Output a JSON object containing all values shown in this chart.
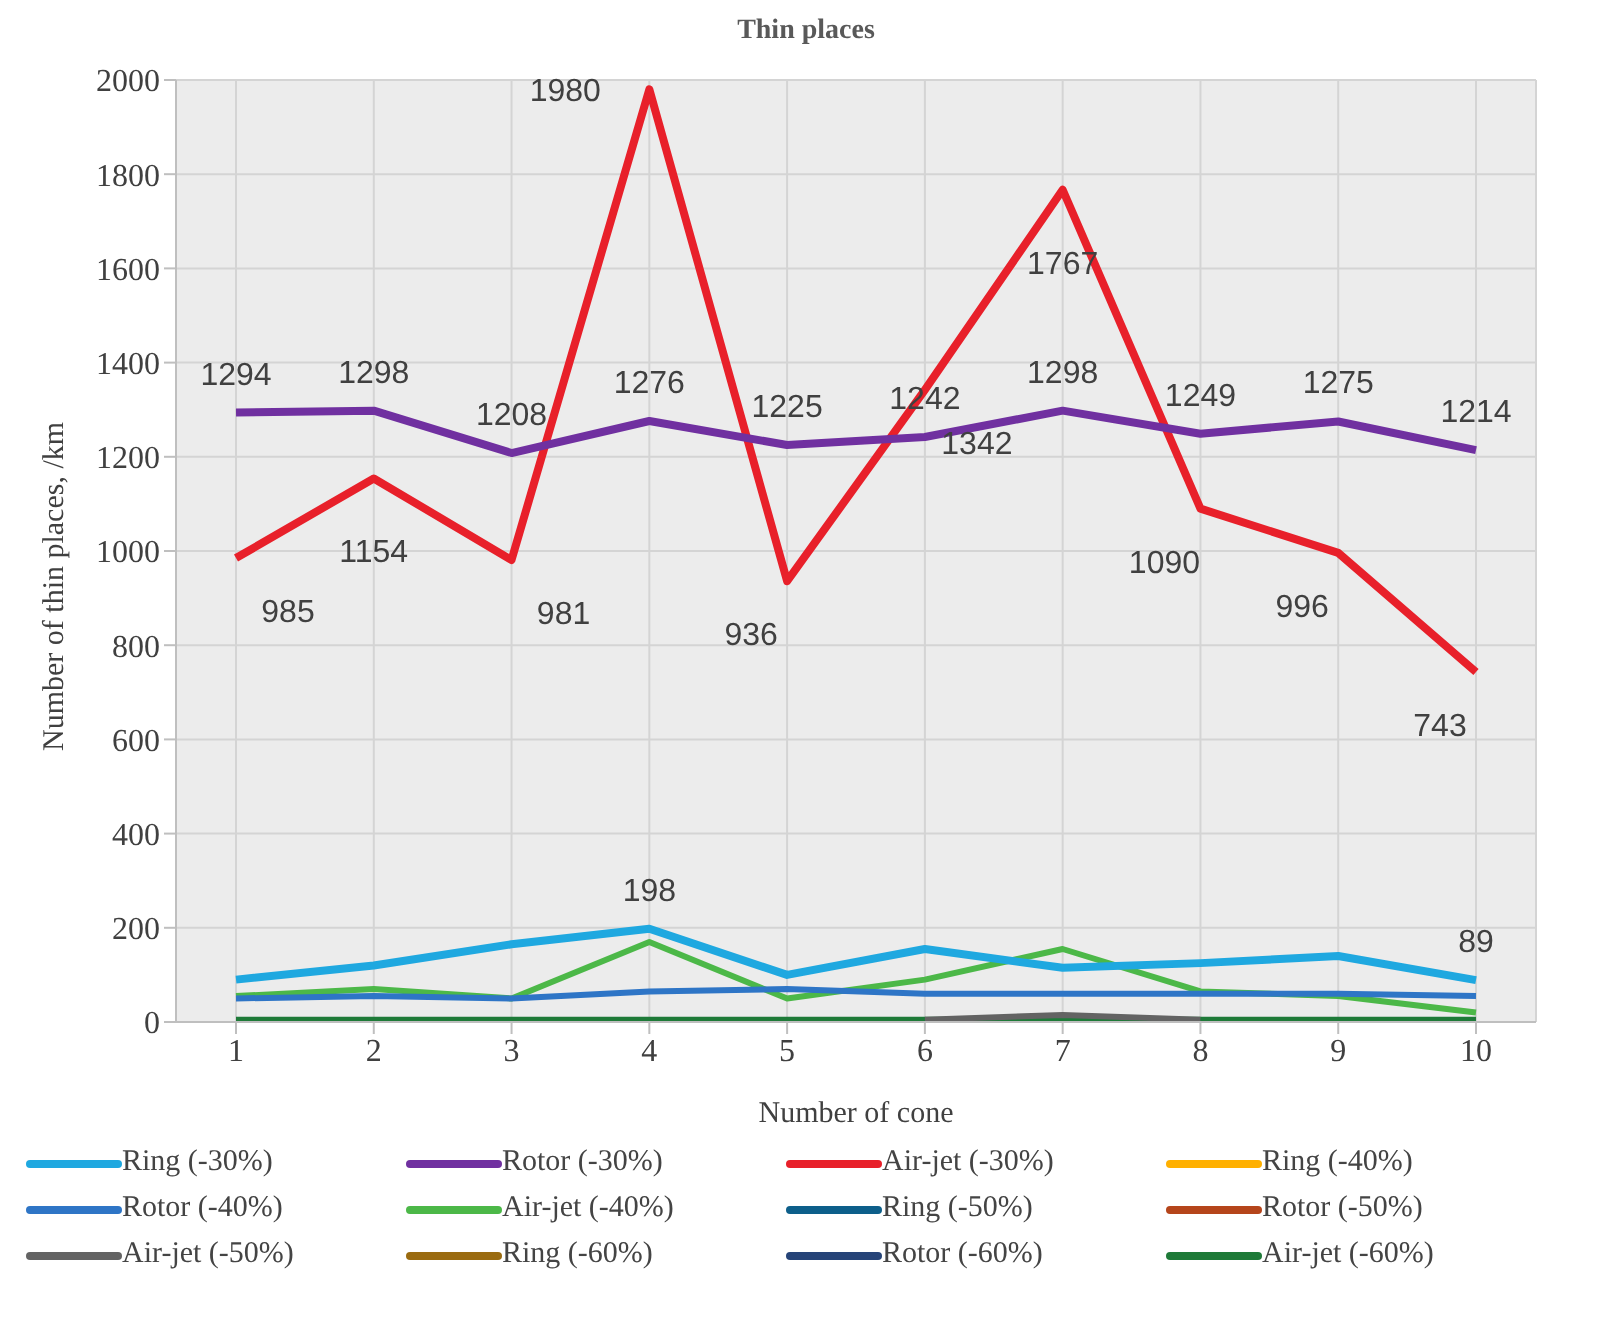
{
  "chart_data": {
    "type": "line",
    "title": "Thin places",
    "xlabel": "Number of cone",
    "ylabel": "Number of thin places, /km",
    "categories": [
      "1",
      "2",
      "3",
      "4",
      "5",
      "6",
      "7",
      "8",
      "9",
      "10"
    ],
    "ylim": [
      0,
      2000
    ],
    "yticks": [
      0,
      200,
      400,
      600,
      800,
      1000,
      1200,
      1400,
      1600,
      1800,
      2000
    ],
    "grid": true,
    "legend": "bottom",
    "marker": "none",
    "line_style": "solid",
    "series": [
      {
        "name": "Ring (-30%)",
        "color": "#1fa8e0",
        "values": [
          90,
          120,
          165,
          198,
          100,
          155,
          115,
          125,
          140,
          89
        ],
        "value_labels": [
          null,
          null,
          null,
          "198",
          null,
          null,
          null,
          null,
          null,
          "89"
        ]
      },
      {
        "name": "Rotor (-30%)",
        "color": "#7030a0",
        "values": [
          1294,
          1298,
          1208,
          1276,
          1225,
          1242,
          1298,
          1249,
          1275,
          1214
        ],
        "value_labels": [
          "1294",
          "1298",
          "1208",
          "1276",
          "1225",
          "1242",
          "1298",
          "1249",
          "1275",
          "1214"
        ]
      },
      {
        "name": "Air-jet (-30%)",
        "color": "#e8202a",
        "values": [
          985,
          1154,
          981,
          1980,
          936,
          1342,
          1767,
          1090,
          996,
          743
        ],
        "value_labels": [
          "985",
          "1154",
          "981",
          "1980",
          "936",
          "1342",
          "1767",
          "1090",
          "996",
          "743"
        ]
      },
      {
        "name": "Ring (-40%)",
        "color": "#ffb000",
        "values": [
          null,
          null,
          null,
          null,
          null,
          null,
          null,
          null,
          null,
          null
        ]
      },
      {
        "name": "Rotor (-40%)",
        "color": "#2e75c6",
        "values": [
          50,
          55,
          50,
          65,
          70,
          60,
          60,
          60,
          60,
          55
        ]
      },
      {
        "name": "Air-jet (-40%)",
        "color": "#4cb848",
        "values": [
          55,
          70,
          50,
          170,
          50,
          90,
          155,
          65,
          55,
          20
        ]
      },
      {
        "name": "Ring (-50%)",
        "color": "#0d5f8a",
        "values": [
          null,
          null,
          null,
          null,
          null,
          null,
          null,
          null,
          null,
          null
        ]
      },
      {
        "name": "Rotor (-50%)",
        "color": "#b5451b",
        "values": [
          null,
          null,
          null,
          null,
          null,
          null,
          null,
          null,
          null,
          null
        ]
      },
      {
        "name": "Air-jet (-50%)",
        "color": "#636363",
        "values": [
          null,
          null,
          null,
          null,
          null,
          5,
          15,
          5,
          null,
          null
        ]
      },
      {
        "name": "Ring (-60%)",
        "color": "#9a6b10",
        "values": [
          null,
          null,
          null,
          null,
          null,
          null,
          null,
          null,
          null,
          null
        ]
      },
      {
        "name": "Rotor (-60%)",
        "color": "#264478",
        "values": [
          null,
          null,
          null,
          null,
          null,
          null,
          null,
          null,
          null,
          null
        ]
      },
      {
        "name": "Air-jet (-60%)",
        "color": "#1e7a38",
        "values": [
          5,
          5,
          5,
          5,
          5,
          5,
          5,
          5,
          5,
          5
        ]
      }
    ]
  }
}
